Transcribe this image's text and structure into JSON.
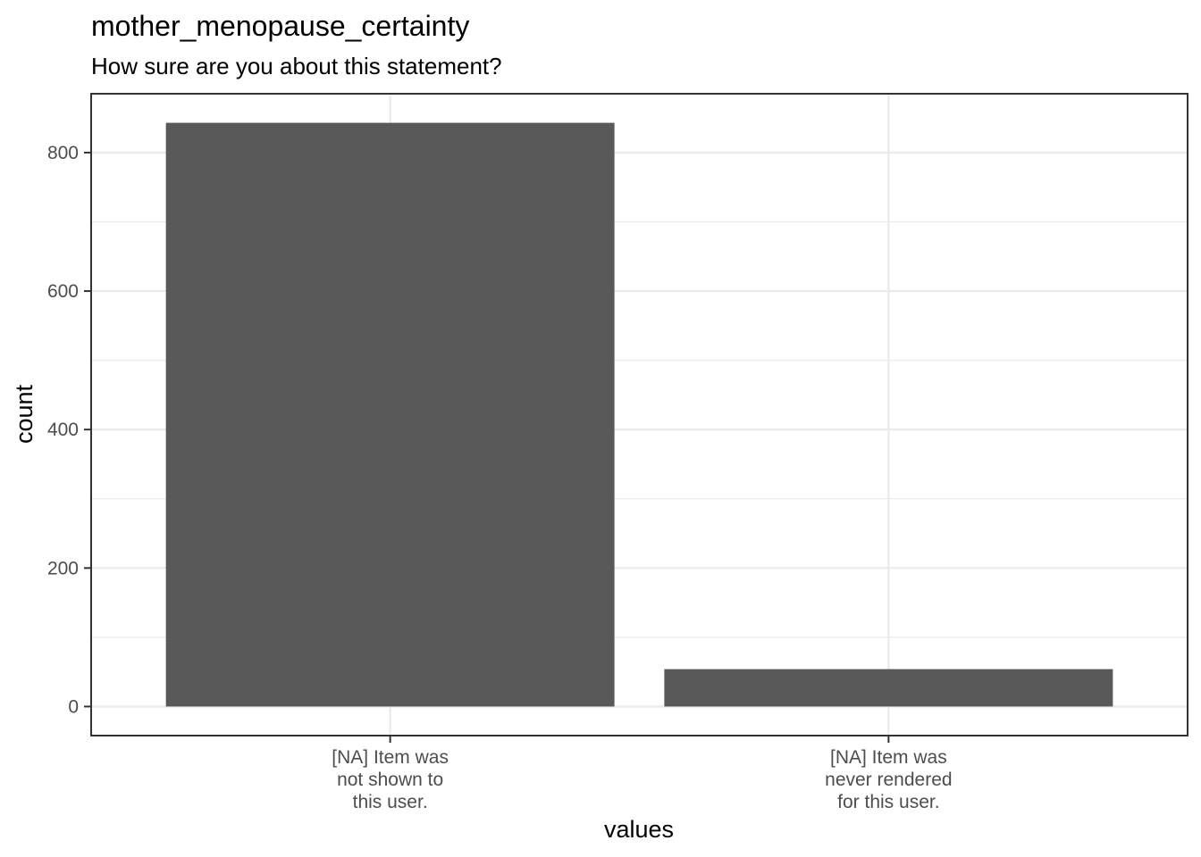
{
  "chart_data": {
    "type": "bar",
    "title": "mother_menopause_certainty",
    "subtitle": "How sure are you about this statement?",
    "xlabel": "values",
    "ylabel": "count",
    "categories": [
      [
        "[NA] Item was",
        "not shown to",
        "this user."
      ],
      [
        "[NA] Item was",
        "never rendered",
        "for this user."
      ]
    ],
    "values": [
      843,
      54
    ],
    "ylim": [
      -42,
      885
    ],
    "yticks": [
      0,
      200,
      400,
      600,
      800
    ],
    "ytick_labels": [
      "0",
      "200",
      "400",
      "600",
      "800"
    ],
    "bar_color": "#595959",
    "grid": true
  }
}
